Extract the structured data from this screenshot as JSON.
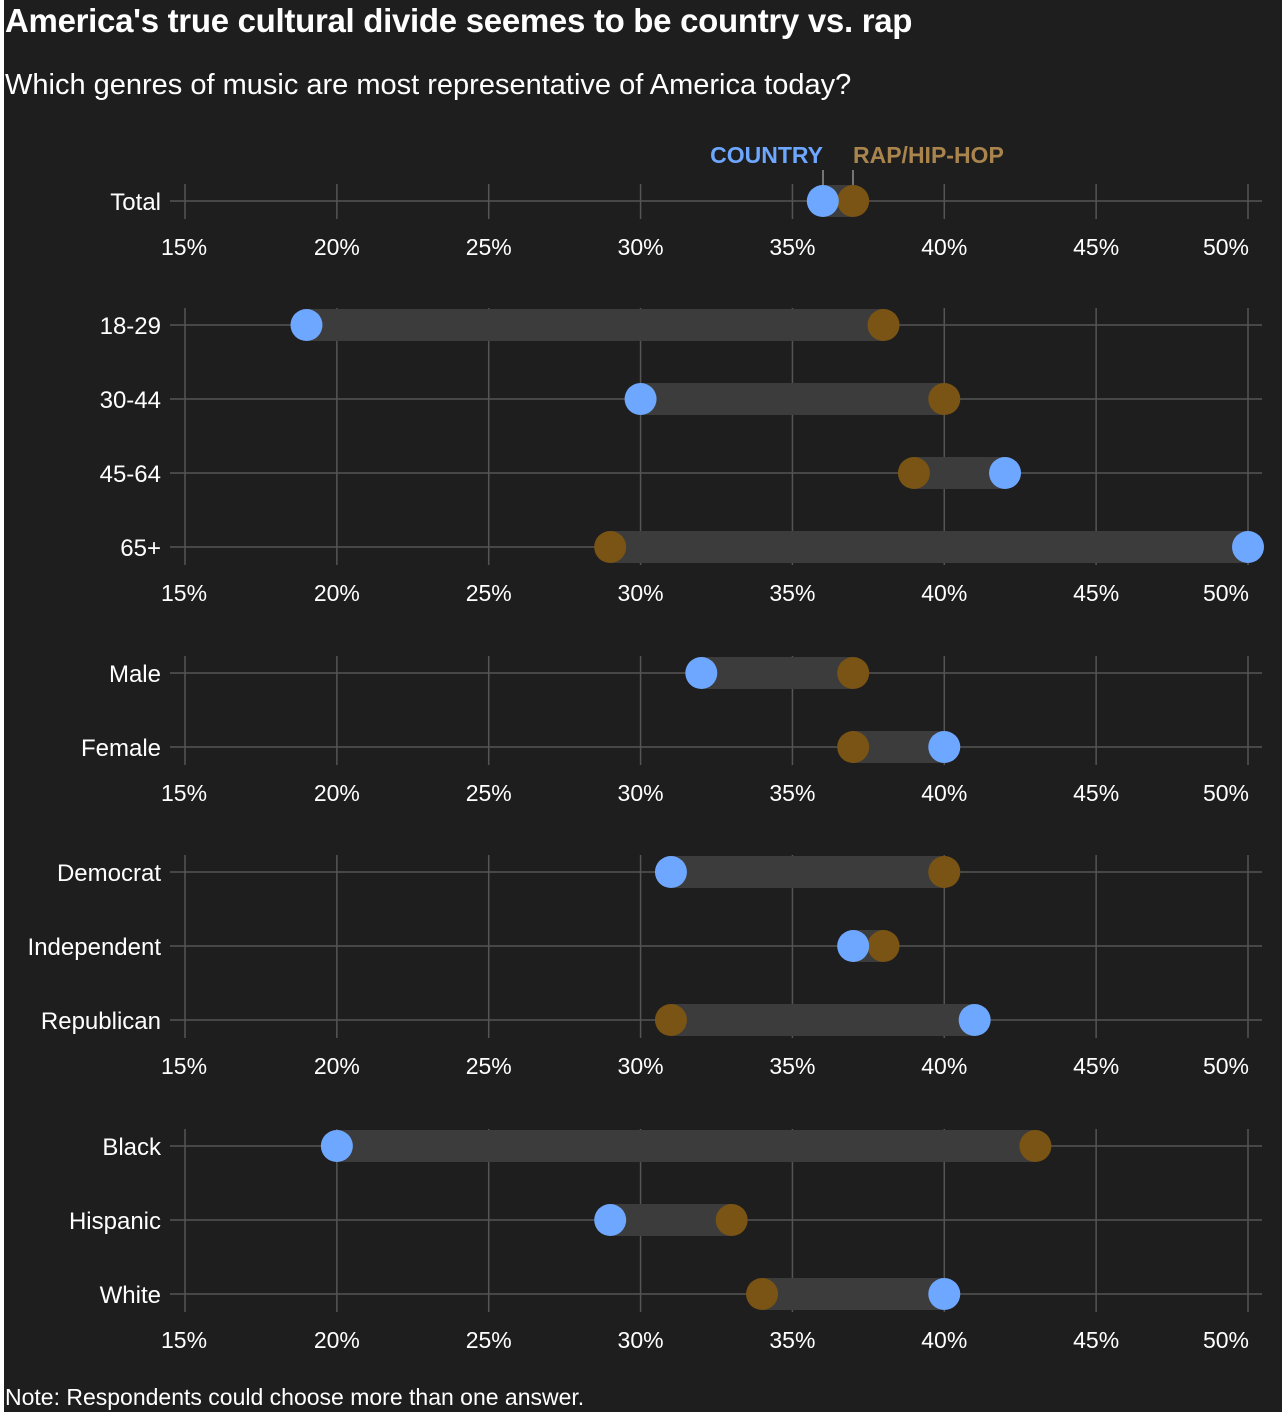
{
  "title": "America's true cultural divide seemes to be country vs. rap",
  "subtitle": "Which genres of music are most representative of America today?",
  "note": "Note: Respondents could choose more than one answer.",
  "colors": {
    "background": "#1e1e1e",
    "country": "#6ea7ff",
    "rap": "#7a5414",
    "rap_legend": "#a9844d",
    "bar": "#3c3c3c",
    "grid": "#555555"
  },
  "chart_data": {
    "type": "dumbbell",
    "xlim": [
      15,
      50
    ],
    "tick_values": [
      15,
      20,
      25,
      30,
      35,
      40,
      45,
      50
    ],
    "tick_labels": [
      "15%",
      "20%",
      "25%",
      "30%",
      "35%",
      "40%",
      "45%",
      "50%"
    ],
    "legend": {
      "country": "COUNTRY",
      "rap": "RAP/HIP-HOP",
      "placement": "top, above Total row"
    },
    "series_names": [
      "COUNTRY",
      "RAP/HIP-HOP"
    ],
    "groups": [
      {
        "categories": [
          {
            "label": "Total",
            "country": 36,
            "rap": 37
          }
        ]
      },
      {
        "categories": [
          {
            "label": "18-29",
            "country": 19,
            "rap": 38
          },
          {
            "label": "30-44",
            "country": 30,
            "rap": 40
          },
          {
            "label": "45-64",
            "country": 42,
            "rap": 39
          },
          {
            "label": "65+",
            "country": 50,
            "rap": 29
          }
        ]
      },
      {
        "categories": [
          {
            "label": "Male",
            "country": 32,
            "rap": 37
          },
          {
            "label": "Female",
            "country": 40,
            "rap": 37
          }
        ]
      },
      {
        "categories": [
          {
            "label": "Democrat",
            "country": 31,
            "rap": 40
          },
          {
            "label": "Independent",
            "country": 37,
            "rap": 38
          },
          {
            "label": "Republican",
            "country": 41,
            "rap": 31
          }
        ]
      },
      {
        "categories": [
          {
            "label": "Black",
            "country": 20,
            "rap": 43
          },
          {
            "label": "Hispanic",
            "country": 29,
            "rap": 33
          },
          {
            "label": "White",
            "country": 40,
            "rap": 34
          }
        ]
      }
    ]
  }
}
